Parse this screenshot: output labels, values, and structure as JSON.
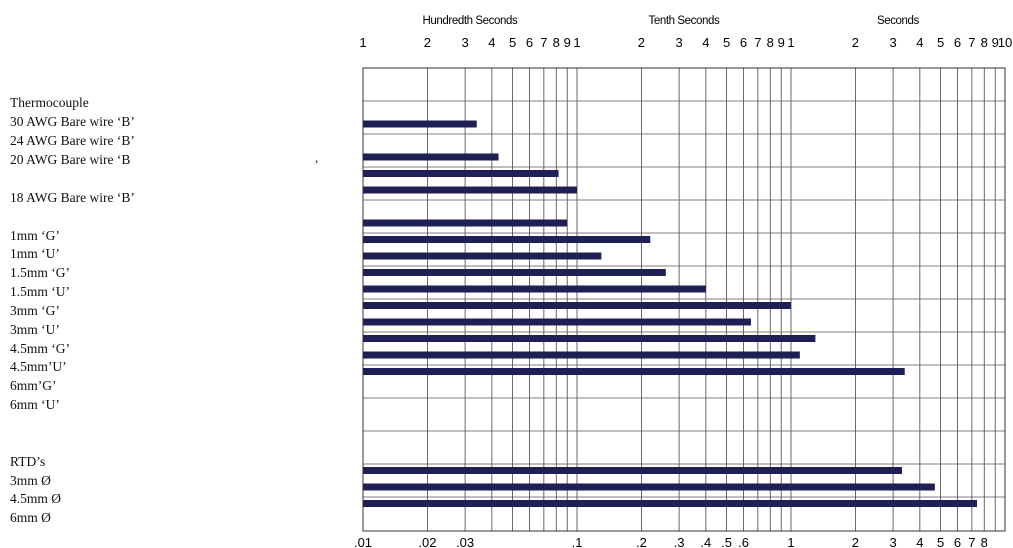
{
  "chart_data": {
    "type": "bar",
    "orientation": "horizontal",
    "scale": "log",
    "xlim": [
      0.01,
      10
    ],
    "unit": "",
    "sections": [
      "Hundredth Seconds",
      "Tenth Seconds",
      "Seconds"
    ],
    "top_ticks": [
      "1",
      "2",
      "3",
      "4",
      "5",
      "6",
      "7",
      "8",
      "9",
      "1",
      "2",
      "3",
      "4",
      "5",
      "6",
      "7",
      "8",
      "9",
      "1",
      "2",
      "3",
      "4",
      "5",
      "6",
      "7",
      "8",
      "9",
      "10"
    ],
    "bottom_ticks": [
      {
        "value": 0.01,
        "label": ".01"
      },
      {
        "value": 0.02,
        "label": ".02"
      },
      {
        "value": 0.03,
        "label": ".03"
      },
      {
        "value": 0.1,
        "label": ".1"
      },
      {
        "value": 0.2,
        "label": ".2"
      },
      {
        "value": 0.3,
        "label": ".3"
      },
      {
        "value": 0.4,
        "label": ".4"
      },
      {
        "value": 0.5,
        "label": ".5"
      },
      {
        "value": 0.6,
        "label": ".6"
      },
      {
        "value": 1,
        "label": "1"
      },
      {
        "value": 2,
        "label": "2"
      },
      {
        "value": 3,
        "label": "3"
      },
      {
        "value": 4,
        "label": "4"
      },
      {
        "value": 5,
        "label": "5"
      },
      {
        "value": 6,
        "label": "6"
      },
      {
        "value": 7,
        "label": "7"
      },
      {
        "value": 8,
        "label": "8"
      }
    ],
    "bars": [
      {
        "row": 3,
        "value": 0.034
      },
      {
        "row": 5,
        "value": 0.043
      },
      {
        "row": 6,
        "value": 0.082
      },
      {
        "row": 7,
        "value": 0.1
      },
      {
        "row": 9,
        "value": 0.09
      },
      {
        "row": 10,
        "value": 0.22
      },
      {
        "row": 11,
        "value": 0.13
      },
      {
        "row": 12,
        "value": 0.26
      },
      {
        "row": 13,
        "value": 0.4
      },
      {
        "row": 14,
        "value": 1.0
      },
      {
        "row": 15,
        "value": 0.65
      },
      {
        "row": 16,
        "value": 1.3
      },
      {
        "row": 17,
        "value": 1.1
      },
      {
        "row": 18,
        "value": 3.4
      },
      {
        "row": 24,
        "value": 3.3
      },
      {
        "row": 25,
        "value": 4.7
      },
      {
        "row": 26,
        "value": 7.4
      }
    ],
    "bar_color": "#1e2055"
  },
  "labels": {
    "thermocouple": "Thermocouple",
    "awg30": "30 AWG Bare wire ‘B’",
    "awg24": "24 AWG Bare wire ‘B’",
    "awg20": "20 AWG Bare wire ‘B",
    "awg18": "18 AWG Bare wire ‘B’",
    "mm1g": "1mm ‘G’",
    "mm1u": "1mm ‘U’",
    "mm15g": "1.5mm ‘G’",
    "mm15u": "1.5mm ‘U’",
    "mm3g": "3mm ‘G’",
    "mm3u": "3mm ‘U’",
    "mm45g": "4.5mm ‘G’",
    "mm45u": "4.5mm’U’",
    "mm6g": "6mm’G’",
    "mm6u": "6mm ‘U’",
    "rtd": "RTD’s",
    "rtd3": "3mm Ø",
    "rtd45": "4.5mm Ø",
    "rtd6": "6mm Ø",
    "stray": ","
  }
}
